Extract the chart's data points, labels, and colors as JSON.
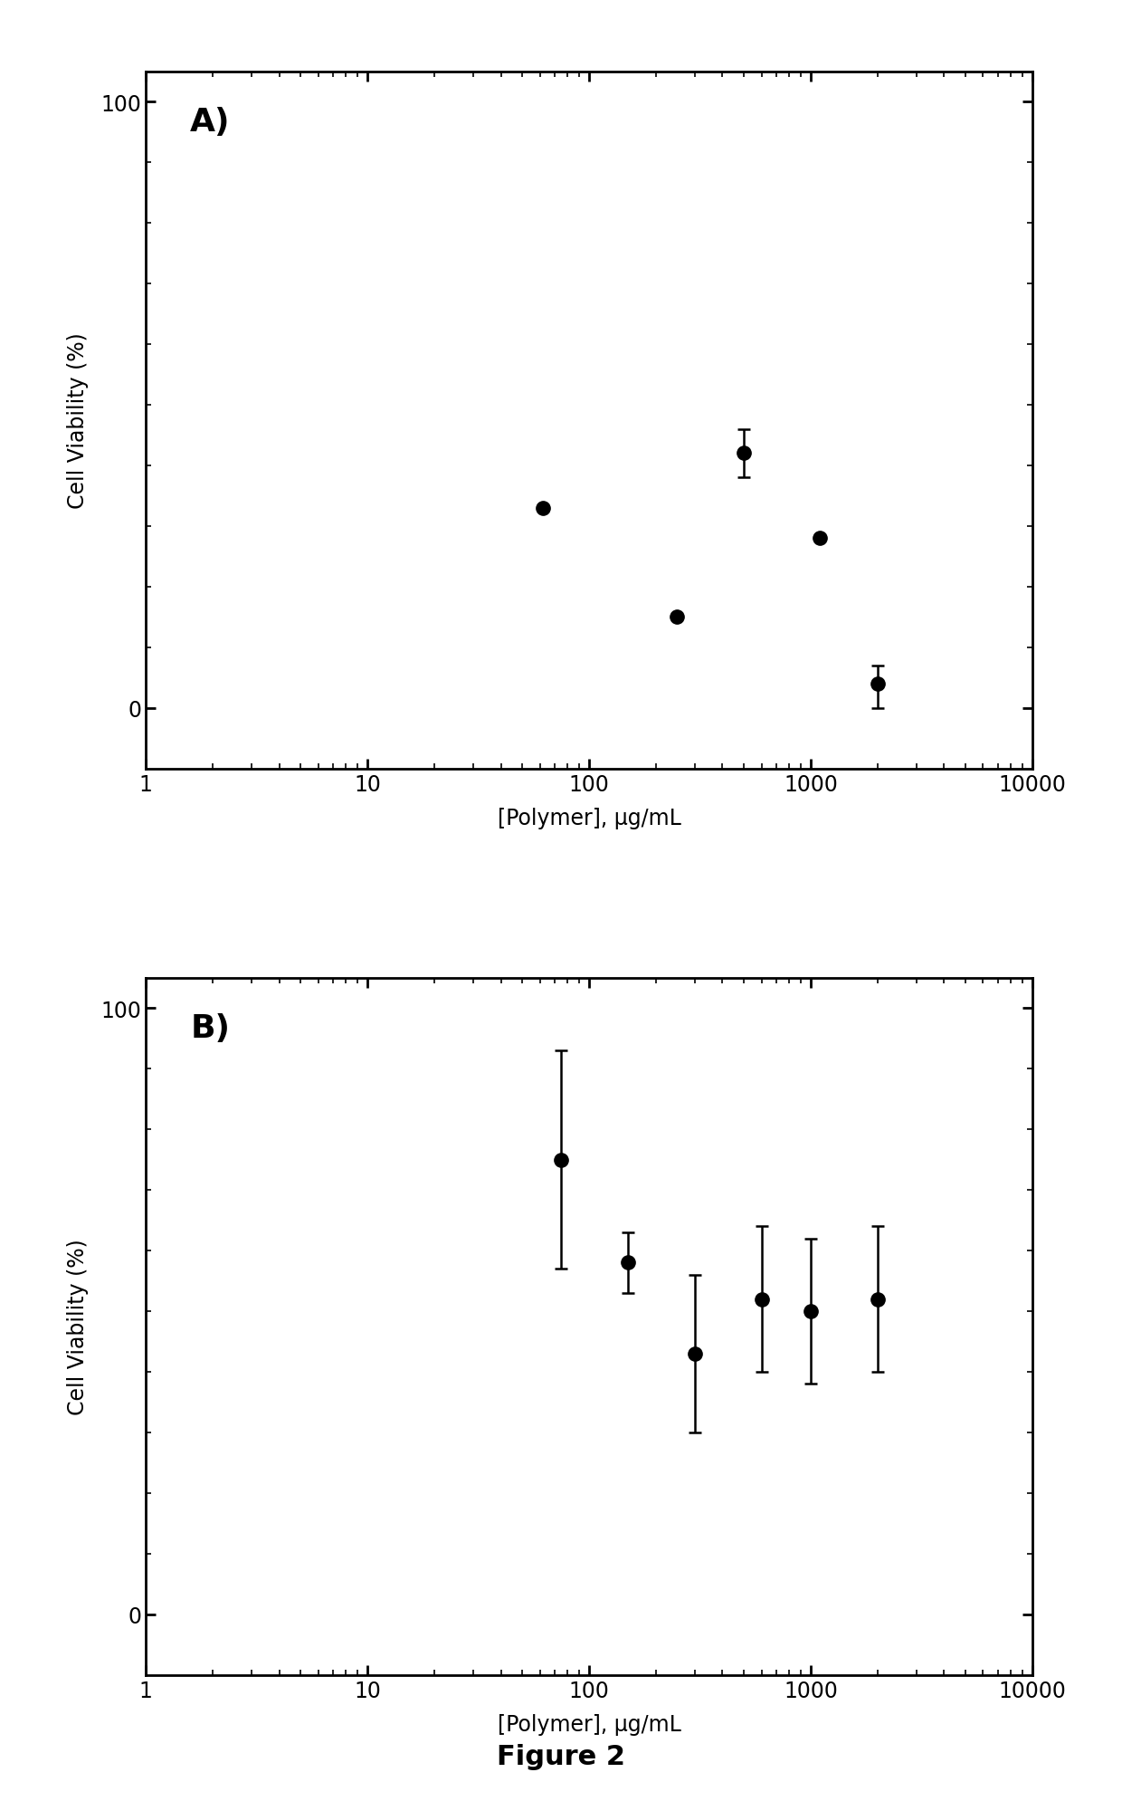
{
  "panel_A": {
    "label": "A)",
    "x": [
      62,
      250,
      500,
      1100,
      2000
    ],
    "y": [
      33,
      15,
      42,
      28,
      4
    ],
    "yerr_lo": [
      0,
      0,
      4,
      0,
      4
    ],
    "yerr_hi": [
      0,
      0,
      4,
      0,
      3
    ],
    "has_errbar": [
      false,
      false,
      true,
      false,
      true
    ],
    "ylabel": "Cell Viability (%)",
    "xlabel": "[Polymer], μg/mL",
    "ylim": [
      -10,
      105
    ],
    "ytick_major": [
      0,
      100
    ],
    "ytick_minor": [
      10,
      20,
      30,
      40,
      50,
      60,
      70,
      80,
      90
    ],
    "xlim": [
      1,
      10000
    ]
  },
  "panel_B": {
    "label": "B)",
    "x": [
      75,
      150,
      300,
      600,
      1000,
      2000
    ],
    "y": [
      75,
      58,
      43,
      52,
      50,
      52
    ],
    "yerr_lo": [
      18,
      5,
      13,
      12,
      12,
      12
    ],
    "yerr_hi": [
      18,
      5,
      13,
      12,
      12,
      12
    ],
    "has_errbar": [
      true,
      true,
      true,
      true,
      true,
      true
    ],
    "ylabel": "Cell Viability (%)",
    "xlabel": "[Polymer], μg/mL",
    "ylim": [
      -10,
      105
    ],
    "ytick_major": [
      0,
      100
    ],
    "ytick_minor": [
      10,
      20,
      30,
      40,
      50,
      60,
      70,
      80,
      90
    ],
    "xlim": [
      1,
      10000
    ]
  },
  "figure_label": "Figure 2",
  "marker_color": "#000000",
  "marker_size": 11,
  "capsize": 5,
  "elinewidth": 1.8,
  "capthick": 1.8,
  "background_color": "#ffffff",
  "tick_fontsize": 17,
  "axis_label_fontsize": 17,
  "panel_label_fontsize": 26,
  "figure_label_fontsize": 22,
  "spine_linewidth": 2.0
}
